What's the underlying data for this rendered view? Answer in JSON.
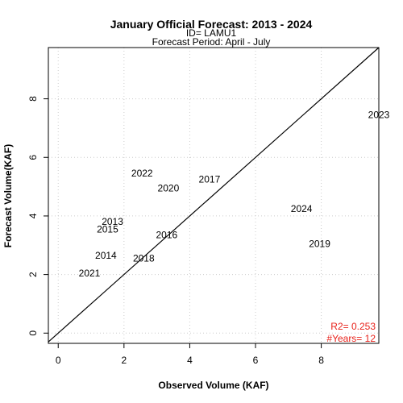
{
  "chart_data": {
    "type": "scatter",
    "title": "January Official Forecast: 2013 - 2024",
    "subtitle_id": "ID= LAMU1",
    "subtitle_period": "Forecast Period:  April - July",
    "xlabel": "Observed Volume (KAF)",
    "ylabel": "Forecast Volume(KAF)",
    "xlim": [
      -0.3,
      9.75
    ],
    "ylim": [
      -0.35,
      9.75
    ],
    "xticks": [
      0,
      2,
      4,
      6,
      8
    ],
    "yticks": [
      0,
      2,
      4,
      6,
      8
    ],
    "grid": true,
    "reference_line": "1:1",
    "points": [
      {
        "label": "2013",
        "x": 1.65,
        "y": 3.8
      },
      {
        "label": "2014",
        "x": 1.45,
        "y": 2.65
      },
      {
        "label": "2015",
        "x": 1.5,
        "y": 3.55
      },
      {
        "label": "2016",
        "x": 3.3,
        "y": 3.35
      },
      {
        "label": "2017",
        "x": 4.6,
        "y": 5.25
      },
      {
        "label": "2018",
        "x": 2.6,
        "y": 2.55
      },
      {
        "label": "2019",
        "x": 7.95,
        "y": 3.05
      },
      {
        "label": "2020",
        "x": 3.35,
        "y": 4.95
      },
      {
        "label": "2021",
        "x": 0.95,
        "y": 2.05
      },
      {
        "label": "2022",
        "x": 2.55,
        "y": 5.45
      },
      {
        "label": "2023",
        "x": 9.75,
        "y": 7.45
      },
      {
        "label": "2024",
        "x": 7.4,
        "y": 4.25
      }
    ],
    "stats": {
      "r2": "R2=  0.253",
      "nyears": "#Years=  12"
    },
    "colors": {
      "stats": "#e8211a",
      "grid": "#cccccc",
      "line": "#000000"
    }
  }
}
